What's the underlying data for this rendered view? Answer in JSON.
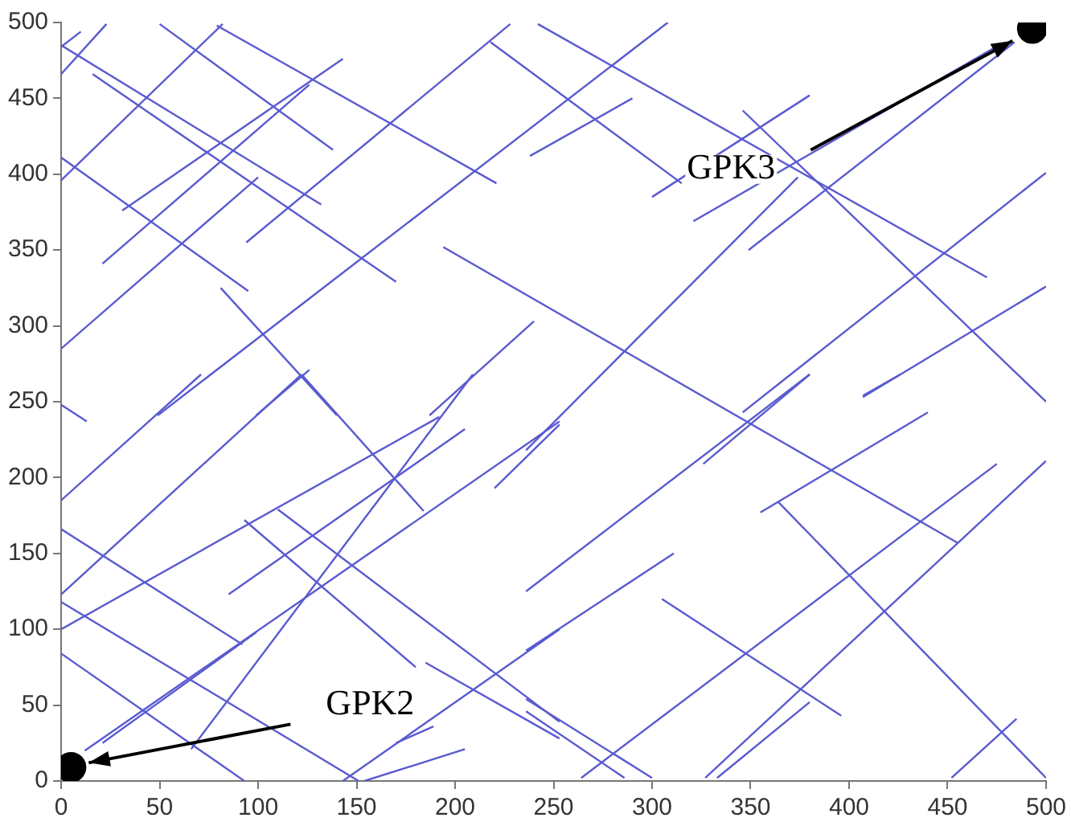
{
  "chart_data": {
    "type": "line",
    "xlim": [
      0,
      500
    ],
    "ylim": [
      0,
      500
    ],
    "xticks": [
      0,
      50,
      100,
      150,
      200,
      250,
      300,
      350,
      400,
      450,
      500
    ],
    "yticks": [
      0,
      50,
      100,
      150,
      200,
      250,
      300,
      350,
      400,
      450,
      500
    ],
    "grid": false,
    "legend": false,
    "line_style": "solid",
    "series": [
      {
        "color": "#5a5ad0",
        "x": [
          0,
          10
        ],
        "values": [
          484,
          494
        ]
      },
      {
        "color": "#5a5ad0",
        "x": [
          0,
          23
        ],
        "values": [
          466,
          499
        ]
      },
      {
        "color": "#5a5ad0",
        "x": [
          0,
          132
        ],
        "values": [
          485,
          380
        ]
      },
      {
        "color": "#5a5ad0",
        "x": [
          16,
          170
        ],
        "values": [
          466,
          329
        ]
      },
      {
        "color": "#5a5ad0",
        "x": [
          50,
          138
        ],
        "values": [
          499,
          416
        ]
      },
      {
        "color": "#5a5ad0",
        "x": [
          79,
          221
        ],
        "values": [
          498,
          394
        ]
      },
      {
        "color": "#5a5ad0",
        "x": [
          0,
          82
        ],
        "values": [
          396,
          499
        ]
      },
      {
        "color": "#5a5ad0",
        "x": [
          31,
          143
        ],
        "values": [
          376,
          476
        ]
      },
      {
        "color": "#5a5ad0",
        "x": [
          21,
          126
        ],
        "values": [
          341,
          459
        ]
      },
      {
        "color": "#5a5ad0",
        "x": [
          0,
          100
        ],
        "values": [
          285,
          398
        ]
      },
      {
        "color": "#5a5ad0",
        "x": [
          0,
          95
        ],
        "values": [
          411,
          323
        ]
      },
      {
        "color": "#5a5ad0",
        "x": [
          94,
          228
        ],
        "values": [
          355,
          499
        ]
      },
      {
        "color": "#5a5ad0",
        "x": [
          218,
          315
        ],
        "values": [
          487,
          394
        ]
      },
      {
        "color": "#5a5ad0",
        "x": [
          242,
          470
        ],
        "values": [
          499,
          332
        ]
      },
      {
        "color": "#5a5ad0",
        "x": [
          49,
          308
        ],
        "values": [
          241,
          500
        ]
      },
      {
        "color": "#5a5ad0",
        "x": [
          194,
          455
        ],
        "values": [
          352,
          157
        ]
      },
      {
        "color": "#5a5ad0",
        "x": [
          81,
          140
        ],
        "values": [
          325,
          241
        ]
      },
      {
        "color": "#5a5ad0",
        "x": [
          99,
          126
        ],
        "values": [
          241,
          271
        ]
      },
      {
        "color": "#5a5ad0",
        "x": [
          187,
          240
        ],
        "values": [
          241,
          303
        ]
      },
      {
        "color": "#5a5ad0",
        "x": [
          238,
          290
        ],
        "values": [
          412,
          450
        ]
      },
      {
        "color": "#5a5ad0",
        "x": [
          300,
          380
        ],
        "values": [
          385,
          452
        ]
      },
      {
        "color": "#5a5ad0",
        "x": [
          346,
          500
        ],
        "values": [
          442,
          250
        ]
      },
      {
        "color": "#5a5ad0",
        "x": [
          321,
          476
        ],
        "values": [
          369,
          485
        ]
      },
      {
        "color": "#5a5ad0",
        "x": [
          349,
          484
        ],
        "values": [
          350,
          487
        ]
      },
      {
        "color": "#5a5ad0",
        "x": [
          236,
          374
        ],
        "values": [
          218,
          398
        ]
      },
      {
        "color": "#5a5ad0",
        "x": [
          407,
          500
        ],
        "values": [
          253,
          326
        ]
      },
      {
        "color": "#5a5ad0",
        "x": [
          346,
          500
        ],
        "values": [
          243,
          401
        ]
      },
      {
        "color": "#5a5ad0",
        "x": [
          0,
          13
        ],
        "values": [
          248,
          237
        ]
      },
      {
        "color": "#5a5ad0",
        "x": [
          0,
          71
        ],
        "values": [
          185,
          268
        ]
      },
      {
        "color": "#5a5ad0",
        "x": [
          0,
          122
        ],
        "values": [
          123,
          268
        ]
      },
      {
        "color": "#5a5ad0",
        "x": [
          122,
          184
        ],
        "values": [
          268,
          178
        ]
      },
      {
        "color": "#5a5ad0",
        "x": [
          0,
          192
        ],
        "values": [
          100,
          240
        ]
      },
      {
        "color": "#5a5ad0",
        "x": [
          85,
          205
        ],
        "values": [
          123,
          232
        ]
      },
      {
        "color": "#5a5ad0",
        "x": [
          0,
          92
        ],
        "values": [
          166,
          90
        ]
      },
      {
        "color": "#5a5ad0",
        "x": [
          0,
          151
        ],
        "values": [
          118,
          0
        ]
      },
      {
        "color": "#5a5ad0",
        "x": [
          0,
          93
        ],
        "values": [
          84,
          0
        ]
      },
      {
        "color": "#5a5ad0",
        "x": [
          21,
          99
        ],
        "values": [
          25,
          98
        ]
      },
      {
        "color": "#5a5ad0",
        "x": [
          12,
          253
        ],
        "values": [
          20,
          237
        ]
      },
      {
        "color": "#5a5ad0",
        "x": [
          110,
          253
        ],
        "values": [
          179,
          39
        ]
      },
      {
        "color": "#5a5ad0",
        "x": [
          93,
          180
        ],
        "values": [
          172,
          75
        ]
      },
      {
        "color": "#5a5ad0",
        "x": [
          66,
          209
        ],
        "values": [
          21,
          268
        ]
      },
      {
        "color": "#5a5ad0",
        "x": [
          143,
          253
        ],
        "values": [
          0,
          100
        ]
      },
      {
        "color": "#5a5ad0",
        "x": [
          185,
          253
        ],
        "values": [
          78,
          28
        ]
      },
      {
        "color": "#5a5ad0",
        "x": [
          170,
          189
        ],
        "values": [
          25,
          36
        ]
      },
      {
        "color": "#5a5ad0",
        "x": [
          154,
          205
        ],
        "values": [
          0,
          21
        ]
      },
      {
        "color": "#5a5ad0",
        "x": [
          220,
          253
        ],
        "values": [
          193,
          235
        ]
      },
      {
        "color": "#5a5ad0",
        "x": [
          236,
          380
        ],
        "values": [
          125,
          268
        ]
      },
      {
        "color": "#5a5ad0",
        "x": [
          236,
          311
        ],
        "values": [
          86,
          150
        ]
      },
      {
        "color": "#5a5ad0",
        "x": [
          326,
          380
        ],
        "values": [
          209,
          268
        ]
      },
      {
        "color": "#5a5ad0",
        "x": [
          407,
          426
        ],
        "values": [
          254,
          268
        ]
      },
      {
        "color": "#5a5ad0",
        "x": [
          355,
          440
        ],
        "values": [
          177,
          243
        ]
      },
      {
        "color": "#5a5ad0",
        "x": [
          364,
          500
        ],
        "values": [
          184,
          2
        ]
      },
      {
        "color": "#5a5ad0",
        "x": [
          305,
          396
        ],
        "values": [
          120,
          43
        ]
      },
      {
        "color": "#5a5ad0",
        "x": [
          264,
          475
        ],
        "values": [
          2,
          209
        ]
      },
      {
        "color": "#5a5ad0",
        "x": [
          327,
          500
        ],
        "values": [
          2,
          211
        ]
      },
      {
        "color": "#5a5ad0",
        "x": [
          333,
          380
        ],
        "values": [
          2,
          52
        ]
      },
      {
        "color": "#5a5ad0",
        "x": [
          452,
          485
        ],
        "values": [
          2,
          41
        ]
      },
      {
        "color": "#5a5ad0",
        "x": [
          236,
          300
        ],
        "values": [
          54,
          2
        ]
      },
      {
        "color": "#5a5ad0",
        "x": [
          236,
          286
        ],
        "values": [
          46,
          2
        ]
      },
      {
        "type": "scatter",
        "marker": "circle",
        "color": "#000000",
        "x": [
          5,
          493
        ],
        "values": [
          9,
          496
        ]
      }
    ],
    "annotations": [
      {
        "text": "GPK2",
        "x": 14,
        "y": 12
      },
      {
        "text": "GPK3",
        "x": 483,
        "y": 488
      }
    ]
  }
}
